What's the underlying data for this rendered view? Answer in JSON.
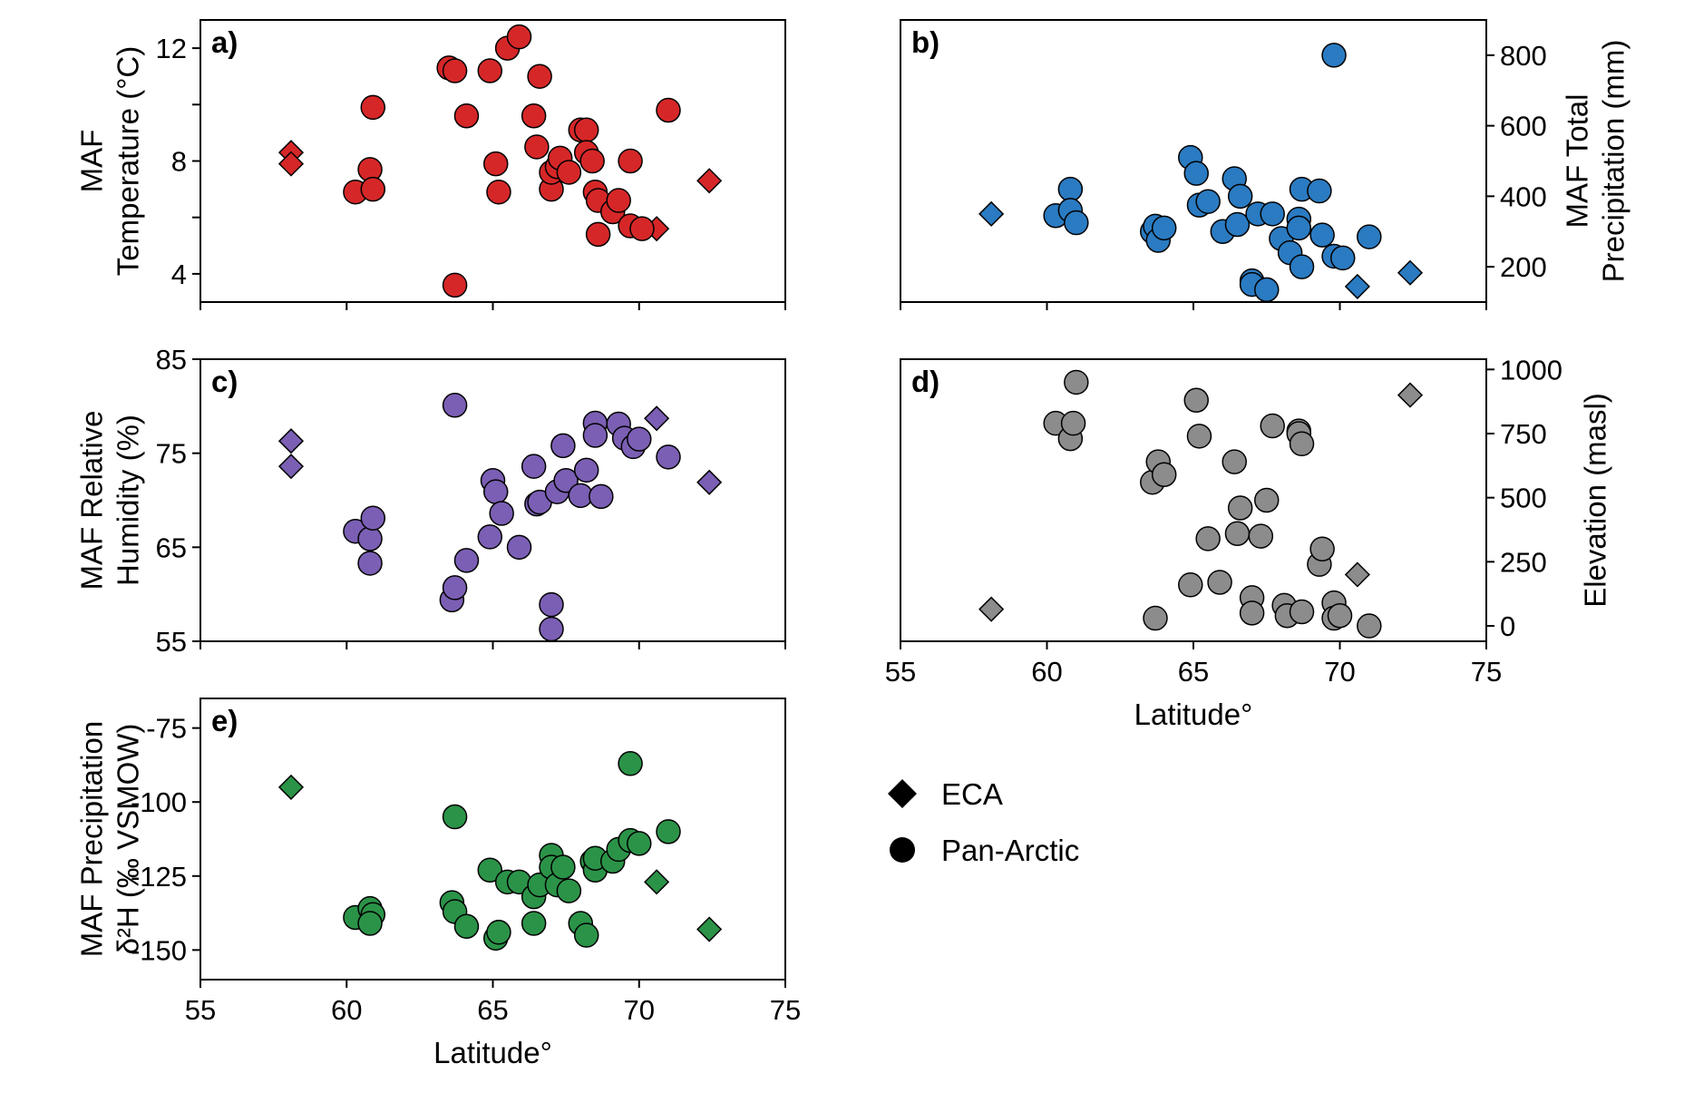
{
  "colors": {
    "temperature": "#d62728",
    "precipitation": "#2a7bc2",
    "humidity": "#7b5fb4",
    "elevation": "#8c8c8c",
    "isotope": "#2b9348",
    "marker_edge": "#000000"
  },
  "legend": {
    "items": [
      {
        "marker": "diamond",
        "label": "ECA"
      },
      {
        "marker": "circle",
        "label": "Pan-Arctic"
      }
    ]
  },
  "chart_data": [
    {
      "id": "a",
      "panel_tag": "a)",
      "type": "scatter",
      "xlabel": "",
      "ylabel": [
        "MAF",
        "Temperature (°C)"
      ],
      "ylabel_side": "left",
      "xlim": [
        55,
        75
      ],
      "ylim": [
        3,
        13
      ],
      "xticks": [
        55,
        60,
        65,
        70,
        75
      ],
      "xtick_labels_shown": false,
      "yticks": [
        4,
        8,
        12
      ],
      "yticklabels": [
        "4",
        "8",
        "12"
      ],
      "yminor": [
        6,
        10
      ],
      "color_key": "temperature",
      "series": [
        {
          "name": "ECA",
          "marker": "diamond",
          "points": [
            [
              58.1,
              8.3
            ],
            [
              58.1,
              7.9
            ],
            [
              70.6,
              5.6
            ],
            [
              72.4,
              7.3
            ]
          ]
        },
        {
          "name": "Pan-Arctic",
          "marker": "circle",
          "points": [
            [
              60.3,
              6.9
            ],
            [
              60.8,
              7.7
            ],
            [
              60.9,
              7.0
            ],
            [
              60.9,
              9.9
            ],
            [
              63.5,
              11.3
            ],
            [
              63.7,
              11.2
            ],
            [
              63.7,
              3.6
            ],
            [
              64.1,
              9.6
            ],
            [
              64.9,
              11.2
            ],
            [
              65.1,
              7.9
            ],
            [
              65.2,
              6.9
            ],
            [
              65.5,
              12.0
            ],
            [
              65.9,
              12.4
            ],
            [
              66.4,
              9.6
            ],
            [
              66.5,
              8.5
            ],
            [
              66.6,
              11.0
            ],
            [
              67.0,
              7.0
            ],
            [
              67.0,
              7.6
            ],
            [
              67.2,
              7.8
            ],
            [
              67.3,
              8.1
            ],
            [
              67.6,
              7.6
            ],
            [
              68.0,
              9.1
            ],
            [
              68.2,
              9.1
            ],
            [
              68.2,
              8.3
            ],
            [
              68.4,
              8.0
            ],
            [
              68.5,
              6.9
            ],
            [
              68.6,
              6.6
            ],
            [
              68.6,
              5.4
            ],
            [
              69.1,
              6.2
            ],
            [
              69.3,
              6.6
            ],
            [
              69.7,
              5.7
            ],
            [
              69.7,
              8.0
            ],
            [
              70.1,
              5.6
            ],
            [
              71.0,
              9.8
            ]
          ]
        }
      ]
    },
    {
      "id": "b",
      "panel_tag": "b)",
      "type": "scatter",
      "xlabel": "",
      "ylabel": [
        "MAF Total",
        "Precipitation (mm)"
      ],
      "ylabel_side": "right",
      "xlim": [
        55,
        75
      ],
      "ylim": [
        100,
        900
      ],
      "xticks": [
        55,
        60,
        65,
        70,
        75
      ],
      "xtick_labels_shown": false,
      "yticks": [
        200,
        400,
        600,
        800
      ],
      "yticklabels": [
        "200",
        "400",
        "600",
        "800"
      ],
      "yminor": [],
      "color_key": "precipitation",
      "series": [
        {
          "name": "ECA",
          "marker": "diamond",
          "points": [
            [
              58.1,
              350
            ],
            [
              70.6,
              144
            ],
            [
              72.4,
              183
            ]
          ]
        },
        {
          "name": "Pan-Arctic",
          "marker": "circle",
          "points": [
            [
              60.3,
              345
            ],
            [
              60.8,
              420
            ],
            [
              60.8,
              360
            ],
            [
              61.0,
              325
            ],
            [
              63.6,
              300
            ],
            [
              63.7,
              315
            ],
            [
              63.8,
              275
            ],
            [
              64.0,
              310
            ],
            [
              64.9,
              510
            ],
            [
              65.1,
              465
            ],
            [
              65.2,
              375
            ],
            [
              65.5,
              385
            ],
            [
              66.0,
              300
            ],
            [
              66.4,
              450
            ],
            [
              66.5,
              320
            ],
            [
              66.6,
              400
            ],
            [
              67.0,
              160
            ],
            [
              67.0,
              150
            ],
            [
              67.2,
              350
            ],
            [
              67.5,
              135
            ],
            [
              67.7,
              350
            ],
            [
              68.0,
              280
            ],
            [
              68.3,
              240
            ],
            [
              68.6,
              335
            ],
            [
              68.6,
              310
            ],
            [
              68.7,
              200
            ],
            [
              68.7,
              420
            ],
            [
              69.3,
              415
            ],
            [
              69.4,
              290
            ],
            [
              69.8,
              800
            ],
            [
              69.8,
              230
            ],
            [
              70.1,
              225
            ],
            [
              71.0,
              285
            ]
          ]
        }
      ]
    },
    {
      "id": "c",
      "panel_tag": "c)",
      "type": "scatter",
      "xlabel": "",
      "ylabel": [
        "MAF Relative",
        "Humidity (%)"
      ],
      "ylabel_side": "left",
      "xlim": [
        55,
        75
      ],
      "ylim": [
        55,
        85
      ],
      "xticks": [
        55,
        60,
        65,
        70,
        75
      ],
      "xtick_labels_shown": false,
      "yticks": [
        55,
        65,
        75,
        85
      ],
      "yticklabels": [
        "55",
        "65",
        "75",
        "85"
      ],
      "yminor": [],
      "color_key": "humidity",
      "series": [
        {
          "name": "ECA",
          "marker": "diamond",
          "points": [
            [
              58.1,
              76.3
            ],
            [
              58.1,
              73.6
            ],
            [
              70.6,
              78.7
            ],
            [
              72.4,
              71.9
            ]
          ]
        },
        {
          "name": "Pan-Arctic",
          "marker": "circle",
          "points": [
            [
              60.3,
              66.7
            ],
            [
              60.8,
              65.9
            ],
            [
              60.9,
              68.1
            ],
            [
              60.8,
              63.3
            ],
            [
              63.6,
              59.4
            ],
            [
              63.7,
              60.7
            ],
            [
              63.7,
              80.1
            ],
            [
              64.1,
              63.6
            ],
            [
              64.9,
              66.1
            ],
            [
              65.0,
              72.1
            ],
            [
              65.1,
              70.9
            ],
            [
              65.3,
              68.6
            ],
            [
              65.9,
              65.0
            ],
            [
              66.4,
              73.6
            ],
            [
              66.5,
              69.6
            ],
            [
              66.6,
              69.8
            ],
            [
              67.0,
              58.9
            ],
            [
              67.0,
              56.3
            ],
            [
              67.2,
              70.9
            ],
            [
              67.4,
              75.8
            ],
            [
              67.5,
              72.1
            ],
            [
              68.0,
              70.5
            ],
            [
              68.2,
              73.2
            ],
            [
              68.5,
              78.2
            ],
            [
              68.5,
              76.9
            ],
            [
              68.7,
              70.4
            ],
            [
              69.3,
              78.1
            ],
            [
              69.5,
              76.6
            ],
            [
              69.8,
              75.7
            ],
            [
              70.0,
              76.5
            ],
            [
              71.0,
              74.6
            ]
          ]
        }
      ]
    },
    {
      "id": "d",
      "panel_tag": "d)",
      "type": "scatter",
      "xlabel": "Latitude°",
      "ylabel": [
        "Elevation (masl)"
      ],
      "ylabel_side": "right",
      "xlim": [
        55,
        75
      ],
      "ylim": [
        -60,
        1040
      ],
      "xticks": [
        55,
        60,
        65,
        70,
        75
      ],
      "xtick_labels_shown": true,
      "xticklabels": [
        "55",
        "60",
        "65",
        "70",
        "75"
      ],
      "yticks": [
        0,
        250,
        500,
        750,
        1000
      ],
      "yticklabels": [
        "0",
        "250",
        "500",
        "750",
        "1000"
      ],
      "yminor": [],
      "color_key": "elevation",
      "series": [
        {
          "name": "ECA",
          "marker": "diamond",
          "points": [
            [
              58.1,
              65
            ],
            [
              70.6,
              200
            ],
            [
              72.4,
              900
            ]
          ]
        },
        {
          "name": "Pan-Arctic",
          "marker": "circle",
          "points": [
            [
              60.3,
              790
            ],
            [
              60.8,
              730
            ],
            [
              60.9,
              790
            ],
            [
              61.0,
              950
            ],
            [
              63.6,
              560
            ],
            [
              63.7,
              30
            ],
            [
              63.8,
              640
            ],
            [
              64.0,
              590
            ],
            [
              64.9,
              160
            ],
            [
              65.1,
              880
            ],
            [
              65.2,
              740
            ],
            [
              65.5,
              340
            ],
            [
              65.9,
              170
            ],
            [
              66.4,
              640
            ],
            [
              66.5,
              360
            ],
            [
              66.6,
              460
            ],
            [
              67.0,
              110
            ],
            [
              67.0,
              50
            ],
            [
              67.3,
              350
            ],
            [
              67.5,
              490
            ],
            [
              67.7,
              780
            ],
            [
              68.1,
              80
            ],
            [
              68.2,
              40
            ],
            [
              68.6,
              760
            ],
            [
              68.6,
              750
            ],
            [
              68.7,
              55
            ],
            [
              68.7,
              710
            ],
            [
              69.3,
              240
            ],
            [
              69.4,
              300
            ],
            [
              69.8,
              90
            ],
            [
              69.8,
              30
            ],
            [
              70.0,
              40
            ],
            [
              71.0,
              0
            ]
          ]
        }
      ]
    },
    {
      "id": "e",
      "panel_tag": "e)",
      "type": "scatter",
      "xlabel": "Latitude°",
      "ylabel": [
        "MAF Precipitation",
        "δ²H (‰ VSMOW)"
      ],
      "ylabel_side": "left",
      "xlim": [
        55,
        75
      ],
      "ylim": [
        -160,
        -65
      ],
      "xticks": [
        55,
        60,
        65,
        70,
        75
      ],
      "xtick_labels_shown": true,
      "xticklabels": [
        "55",
        "60",
        "65",
        "70",
        "75"
      ],
      "yticks": [
        -150,
        -125,
        -100,
        -75
      ],
      "yticklabels": [
        "-150",
        "-125",
        "-100",
        "-75"
      ],
      "yminor": [],
      "color_key": "isotope",
      "series": [
        {
          "name": "ECA",
          "marker": "diamond",
          "points": [
            [
              58.1,
              -95
            ],
            [
              70.6,
              -127
            ],
            [
              72.4,
              -143
            ]
          ]
        },
        {
          "name": "Pan-Arctic",
          "marker": "circle",
          "points": [
            [
              60.3,
              -139
            ],
            [
              60.8,
              -136
            ],
            [
              60.9,
              -138
            ],
            [
              60.8,
              -141
            ],
            [
              63.6,
              -134
            ],
            [
              63.7,
              -137
            ],
            [
              63.7,
              -105
            ],
            [
              64.1,
              -142
            ],
            [
              64.9,
              -123
            ],
            [
              65.1,
              -146
            ],
            [
              65.2,
              -144
            ],
            [
              65.5,
              -127
            ],
            [
              65.9,
              -127
            ],
            [
              66.4,
              -132
            ],
            [
              66.4,
              -141
            ],
            [
              66.6,
              -128
            ],
            [
              67.0,
              -118
            ],
            [
              67.0,
              -122
            ],
            [
              67.2,
              -128
            ],
            [
              67.4,
              -122
            ],
            [
              67.6,
              -130
            ],
            [
              68.0,
              -141
            ],
            [
              68.2,
              -145
            ],
            [
              68.4,
              -120
            ],
            [
              68.5,
              -123
            ],
            [
              68.5,
              -119
            ],
            [
              69.1,
              -120
            ],
            [
              69.3,
              -116
            ],
            [
              69.7,
              -113
            ],
            [
              69.7,
              -87
            ],
            [
              70.0,
              -114
            ],
            [
              71.0,
              -110
            ]
          ]
        }
      ]
    }
  ]
}
